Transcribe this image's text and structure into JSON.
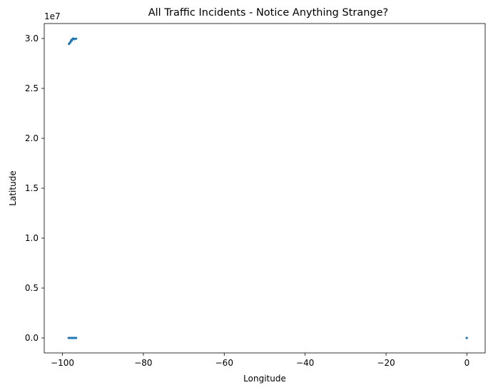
{
  "chart_data": {
    "type": "scatter",
    "title": "All Traffic Incidents - Notice Anything Strange?",
    "xlabel": "Longitude",
    "ylabel": "Latitude",
    "y_offset_label": "1e7",
    "xlim": [
      -104.5,
      4.5
    ],
    "ylim": [
      -1500000,
      31500000
    ],
    "x_ticks": [
      -100,
      -80,
      -60,
      -40,
      -20,
      0
    ],
    "x_tick_labels": [
      "−100",
      "−80",
      "−60",
      "−40",
      "−20",
      "0"
    ],
    "y_ticks": [
      0,
      5000000,
      10000000,
      15000000,
      20000000,
      25000000,
      30000000
    ],
    "y_tick_labels": [
      "0.0",
      "0.5",
      "1.0",
      "1.5",
      "2.0",
      "2.5",
      "3.0"
    ],
    "grid": false,
    "marker_color": "#1f77b4",
    "series": [
      {
        "points": [
          {
            "x": -98.4,
            "y": 29450000
          },
          {
            "x": -98.2,
            "y": 29550000
          },
          {
            "x": -98.0,
            "y": 29650000
          },
          {
            "x": -97.9,
            "y": 29750000
          },
          {
            "x": -97.8,
            "y": 29850000
          },
          {
            "x": -97.6,
            "y": 29900000
          },
          {
            "x": -97.5,
            "y": 29950000
          },
          {
            "x": -97.3,
            "y": 29980000
          },
          {
            "x": -97.1,
            "y": 29920000
          },
          {
            "x": -96.9,
            "y": 29960000
          },
          {
            "x": -97.7,
            "y": 29780000
          },
          {
            "x": -98.1,
            "y": 29600000
          },
          {
            "x": -98.3,
            "y": 29500000
          },
          {
            "x": -97.4,
            "y": 30000000
          },
          {
            "x": -96.6,
            "y": 29980000
          },
          {
            "x": -98.5,
            "y": 0
          },
          {
            "x": -98.2,
            "y": 0
          },
          {
            "x": -98.0,
            "y": 0
          },
          {
            "x": -97.8,
            "y": 0
          },
          {
            "x": -97.6,
            "y": 0
          },
          {
            "x": -97.4,
            "y": 0
          },
          {
            "x": -97.2,
            "y": 0
          },
          {
            "x": -97.0,
            "y": 0
          },
          {
            "x": -96.8,
            "y": 0
          },
          {
            "x": -96.6,
            "y": 0
          },
          {
            "x": -97.9,
            "y": 0
          },
          {
            "x": -97.3,
            "y": 0
          },
          {
            "x": 0.0,
            "y": 0
          },
          {
            "x": -0.1,
            "y": 0
          }
        ]
      }
    ]
  }
}
